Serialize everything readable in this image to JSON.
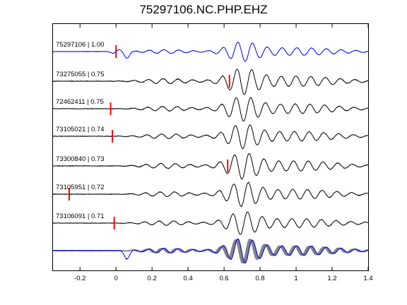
{
  "chart_data": {
    "type": "line",
    "title": "75297106.NC.PHP.EHZ",
    "xlabel": "",
    "ylabel": "",
    "xlim": [
      -0.35,
      1.4
    ],
    "x_ticks": [
      -0.2,
      0,
      0.2,
      0.4,
      0.6,
      0.8,
      1,
      1.2,
      1.4
    ],
    "x_tick_labels": [
      "-0.2",
      "0",
      "0.2",
      "0.4",
      "0.6",
      "0.8",
      "1",
      "1.2",
      "1.4"
    ],
    "grid": false,
    "series": [
      {
        "name": "75297106 | 1.00",
        "color": "#0000ff",
        "pick_time": 0.0
      },
      {
        "name": "73275055 | 0.75",
        "color": "#000000",
        "pick_time": 0.63
      },
      {
        "name": "72462411 | 0.75",
        "color": "#000000",
        "pick_time": -0.03
      },
      {
        "name": "73105021 | 0.74",
        "color": "#000000",
        "pick_time": -0.02
      },
      {
        "name": "73300840 | 0.73",
        "color": "#000000",
        "pick_time": 0.62
      },
      {
        "name": "73105951 | 0.72",
        "color": "#000000",
        "pick_time": -0.26
      },
      {
        "name": "73106091 | 0.71",
        "color": "#000000",
        "pick_time": -0.01
      }
    ],
    "stack": {
      "color_traces": "#808080",
      "color_reference": "#0000ff"
    },
    "pick_color": "#ff0000"
  }
}
